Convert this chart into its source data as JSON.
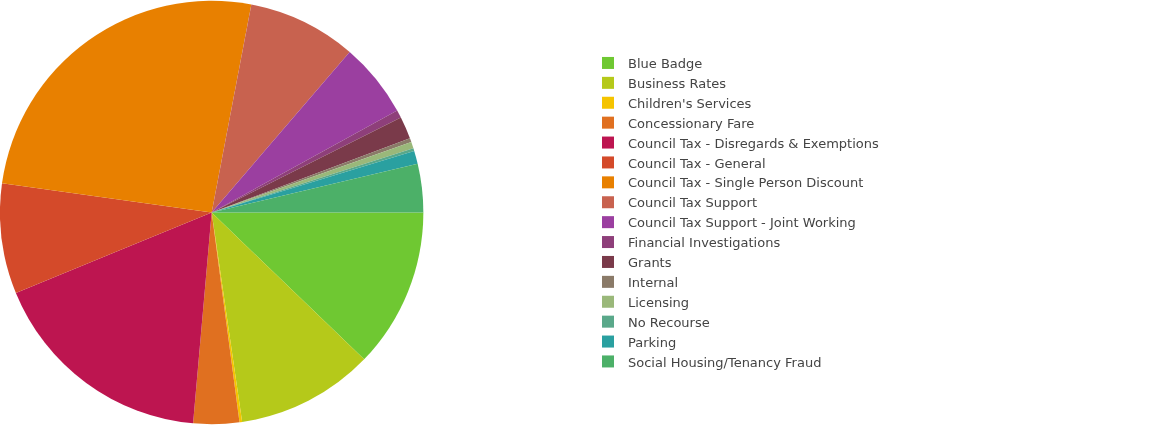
{
  "chart_data": {
    "type": "pie",
    "categories": [
      "Blue Badge",
      "Business Rates",
      "Children's Services",
      "Concessionary Fare",
      "Council Tax - Disregards & Exemptions",
      "Council Tax - General",
      "Council Tax - Single Person Discount",
      "Council Tax Support",
      "Council Tax Support - Joint Working",
      "Financial Investigations",
      "Grants",
      "Internal",
      "Licensing",
      "No Recourse",
      "Parking",
      "Social Housing/Tenancy Fraud"
    ],
    "values": [
      12.2,
      10.5,
      0.2,
      3.5,
      17.4,
      8.4,
      25.8,
      8.3,
      5.7,
      0.6,
      1.7,
      0.3,
      0.5,
      0.2,
      1.0,
      3.7
    ],
    "colors": [
      "#6fc832",
      "#b5c91a",
      "#f5c400",
      "#e07020",
      "#bd1550",
      "#d44a2a",
      "#e88000",
      "#c8624f",
      "#9b3fa0",
      "#8e3f7a",
      "#7a3a4a",
      "#8a7a68",
      "#9ab87a",
      "#5aa88a",
      "#2aa0a0",
      "#4cb068"
    ],
    "legend": "right"
  }
}
